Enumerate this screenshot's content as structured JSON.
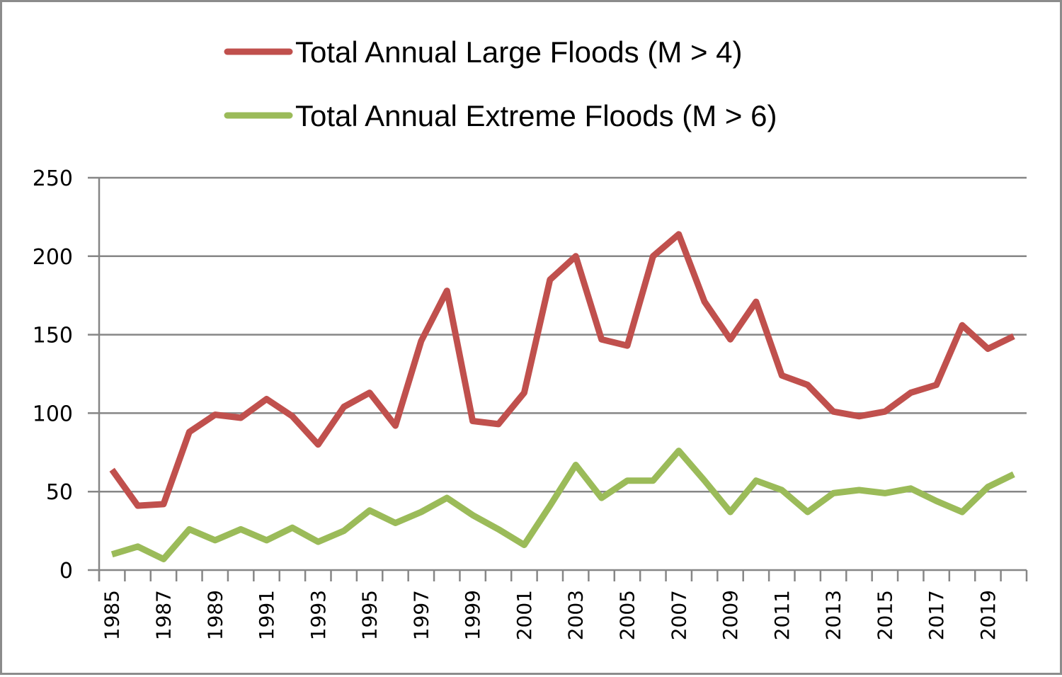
{
  "chart_data": {
    "type": "line",
    "title": "",
    "xlabel": "",
    "ylabel": "",
    "ylim": [
      0,
      250
    ],
    "yticks": [
      0,
      50,
      100,
      150,
      200,
      250
    ],
    "grid": true,
    "legend_position": "top",
    "x": [
      1985,
      1986,
      1987,
      1988,
      1989,
      1990,
      1991,
      1992,
      1993,
      1994,
      1995,
      1996,
      1997,
      1998,
      1999,
      2000,
      2001,
      2002,
      2003,
      2004,
      2005,
      2006,
      2007,
      2008,
      2009,
      2010,
      2011,
      2012,
      2013,
      2014,
      2015,
      2016,
      2017,
      2018,
      2019,
      2020
    ],
    "xtick_labels": [
      "1985",
      "1987",
      "1989",
      "1991",
      "1993",
      "1995",
      "1997",
      "1999",
      "2001",
      "2003",
      "2005",
      "2007",
      "2009",
      "2011",
      "2013",
      "2015",
      "2017",
      "2019"
    ],
    "series": [
      {
        "name": "Total Annual Large Floods (M > 4)",
        "color": "#c0504d",
        "values": [
          64,
          41,
          42,
          88,
          99,
          97,
          109,
          98,
          80,
          104,
          113,
          92,
          146,
          178,
          95,
          93,
          113,
          185,
          200,
          147,
          143,
          200,
          214,
          171,
          147,
          171,
          124,
          118,
          101,
          98,
          101,
          113,
          118,
          156,
          141,
          149
        ]
      },
      {
        "name": "Total Annual Extreme Floods (M > 6)",
        "color": "#9bbb59",
        "values": [
          10,
          15,
          7,
          26,
          19,
          26,
          19,
          27,
          18,
          25,
          38,
          30,
          37,
          46,
          35,
          26,
          16,
          41,
          67,
          46,
          57,
          57,
          76,
          57,
          37,
          57,
          51,
          37,
          49,
          51,
          49,
          52,
          44,
          37,
          53,
          61
        ]
      }
    ]
  }
}
